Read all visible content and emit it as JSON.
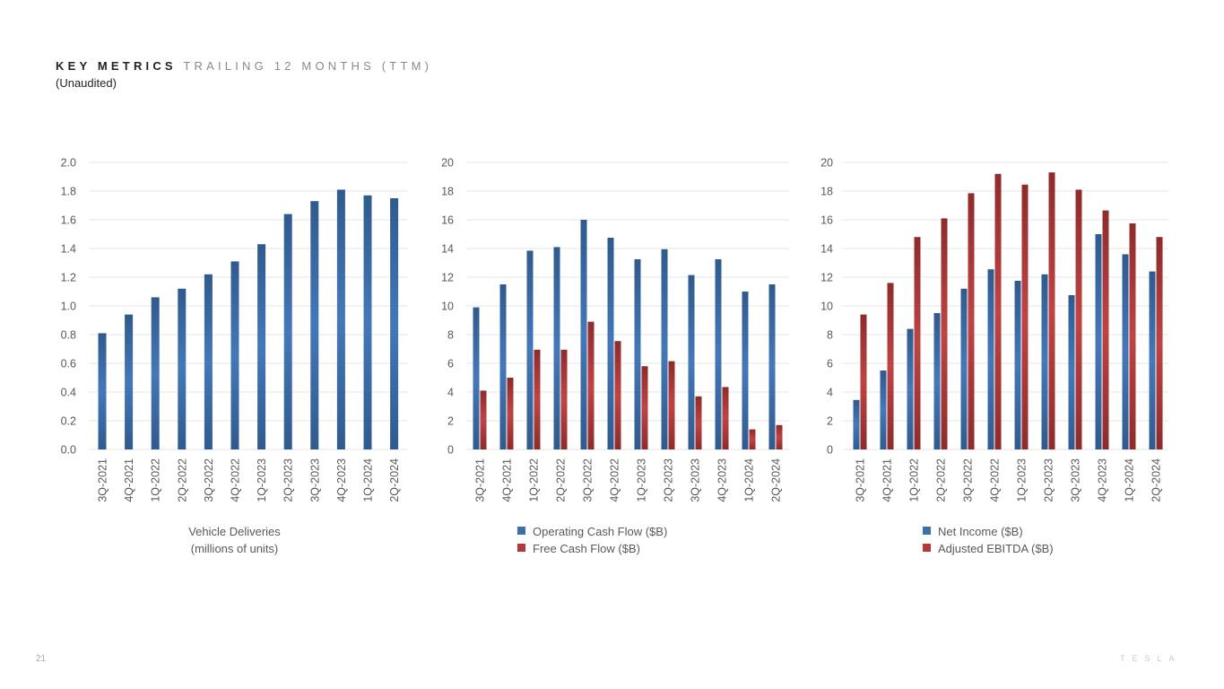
{
  "header": {
    "title_strong": "KEY METRICS",
    "title_light": "TRAILING 12 MONTHS (TTM)",
    "subtitle": "(Unaudited)"
  },
  "footer": {
    "page_number": "21",
    "brand": "TESLA"
  },
  "colors": {
    "blue": "#3d6faa",
    "red": "#b03a3a",
    "grid": "#e6e6e6",
    "text": "#595959"
  },
  "chart_data": [
    {
      "type": "bar",
      "categories": [
        "3Q-2021",
        "4Q-2021",
        "1Q-2022",
        "2Q-2022",
        "3Q-2022",
        "4Q-2022",
        "1Q-2023",
        "2Q-2023",
        "3Q-2023",
        "4Q-2023",
        "1Q-2024",
        "2Q-2024"
      ],
      "series": [
        {
          "values": [
            0.81,
            0.94,
            1.06,
            1.12,
            1.22,
            1.31,
            1.43,
            1.64,
            1.73,
            1.81,
            1.77,
            1.75
          ]
        }
      ],
      "yticks": [
        "0.0",
        "0.2",
        "0.4",
        "0.6",
        "0.8",
        "1.0",
        "1.2",
        "1.4",
        "1.6",
        "1.8",
        "2.0"
      ],
      "ylim": [
        0,
        2
      ],
      "caption": [
        "Vehicle Deliveries",
        "(millions of units)"
      ],
      "grid": true
    },
    {
      "type": "bar",
      "categories": [
        "3Q-2021",
        "4Q-2021",
        "1Q-2022",
        "2Q-2022",
        "3Q-2022",
        "4Q-2022",
        "1Q-2023",
        "2Q-2023",
        "3Q-2023",
        "4Q-2023",
        "1Q-2024",
        "2Q-2024"
      ],
      "series": [
        {
          "name": "Operating Cash Flow ($B)",
          "values": [
            9.9,
            11.5,
            13.85,
            14.1,
            16.0,
            14.75,
            13.25,
            13.95,
            12.15,
            13.25,
            11.0,
            11.5
          ]
        },
        {
          "name": "Free Cash Flow ($B)",
          "values": [
            4.1,
            5.0,
            6.95,
            6.95,
            8.9,
            7.55,
            5.8,
            6.15,
            3.7,
            4.35,
            1.4,
            1.7
          ]
        }
      ],
      "yticks": [
        "0",
        "2",
        "4",
        "6",
        "8",
        "10",
        "12",
        "14",
        "16",
        "18",
        "20"
      ],
      "ylim": [
        0,
        20
      ],
      "legend": "bottom",
      "grid": true
    },
    {
      "type": "bar",
      "categories": [
        "3Q-2021",
        "4Q-2021",
        "1Q-2022",
        "2Q-2022",
        "3Q-2022",
        "4Q-2022",
        "1Q-2023",
        "2Q-2023",
        "3Q-2023",
        "4Q-2023",
        "1Q-2024",
        "2Q-2024"
      ],
      "series": [
        {
          "name": "Net Income ($B)",
          "values": [
            3.45,
            5.5,
            8.4,
            9.5,
            11.2,
            12.55,
            11.75,
            12.2,
            10.75,
            15.0,
            13.6,
            12.4
          ]
        },
        {
          "name": "Adjusted EBITDA ($B)",
          "values": [
            9.4,
            11.6,
            14.8,
            16.1,
            17.85,
            19.2,
            18.45,
            19.3,
            18.1,
            16.65,
            15.75,
            14.8
          ]
        }
      ],
      "yticks": [
        "0",
        "2",
        "4",
        "6",
        "8",
        "10",
        "12",
        "14",
        "16",
        "18",
        "20"
      ],
      "ylim": [
        0,
        20
      ],
      "legend": "bottom",
      "grid": true
    }
  ]
}
